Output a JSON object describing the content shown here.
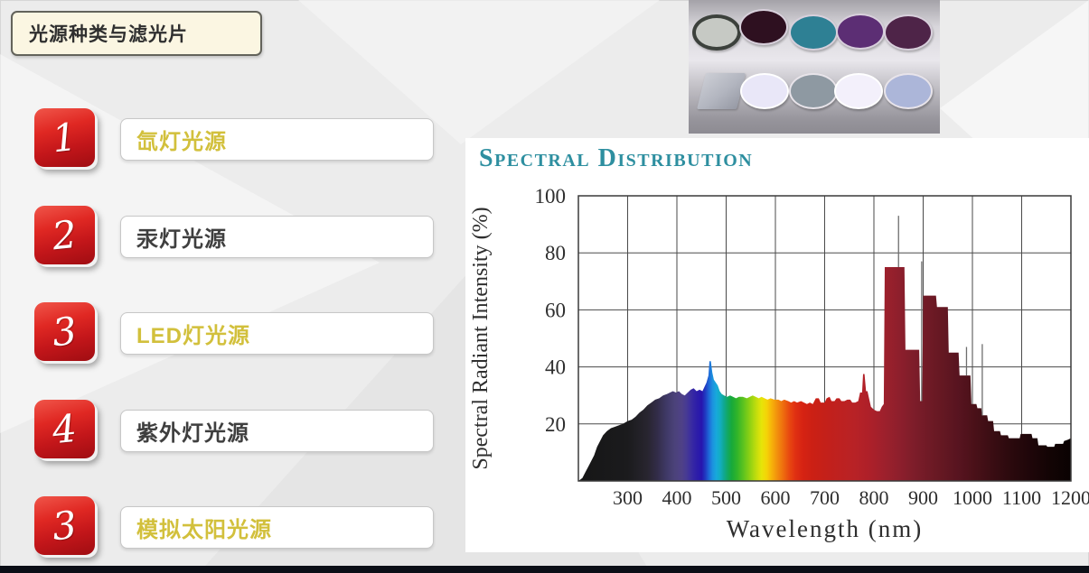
{
  "slide_title": {
    "text": "光源种类与滤光片"
  },
  "light_source_list": {
    "items": [
      {
        "number": "1",
        "label": "氙灯光源",
        "label_style": "gold"
      },
      {
        "number": "2",
        "label": "汞灯光源",
        "label_style": "dark"
      },
      {
        "number": "3",
        "label": "LED灯光源",
        "label_style": "gold"
      },
      {
        "number": "4",
        "label": "紫外灯光源",
        "label_style": "dark"
      },
      {
        "number": "3",
        "label": "模拟太阳光源",
        "label_style": "gold"
      }
    ]
  },
  "colors": {
    "badge_red_top": "#f0564a",
    "badge_red_bottom": "#9f0d12",
    "gold_text": "#d2c03c",
    "dark_text": "#3f3f3f",
    "chart_title_teal": "#2e8fa0",
    "title_box_bg": "#fbf6e2",
    "title_box_border": "#63635b",
    "footer_bar": "#0b0e16"
  },
  "filters_photo": {
    "top_row": [
      {
        "name": "gray-ringed-filter",
        "fill": "#c6c9c4",
        "ring": "#3c413c"
      },
      {
        "name": "dark-maroon-filter",
        "fill": "#2e1020",
        "ring": "#d8d0dc"
      },
      {
        "name": "teal-filter",
        "fill": "#2e8094",
        "ring": "#d8d0dc"
      },
      {
        "name": "purple-filter",
        "fill": "#5c2e74",
        "ring": "#d8d0dc"
      },
      {
        "name": "plum-filter",
        "fill": "#4e2448",
        "ring": "#d8d0dc"
      }
    ],
    "bottom_row": [
      {
        "name": "square-gray-filter",
        "fill": "#b9bcc4",
        "ring": ""
      },
      {
        "name": "pale-lavender-filter",
        "fill": "#e9e7f8",
        "ring": "#ffffff"
      },
      {
        "name": "gray-filter",
        "fill": "#8e99a2",
        "ring": "#e8e4ea"
      },
      {
        "name": "white-filter",
        "fill": "#f3f0fb",
        "ring": "#ffffff"
      },
      {
        "name": "periwinkle-filter",
        "fill": "#acb6d9",
        "ring": "#e8e4ea"
      }
    ]
  },
  "chart_data": {
    "type": "area",
    "title": "Spectral Distribution",
    "xlabel": "Wavelength (nm)",
    "ylabel": "Spectral Radiant Intensity (%)",
    "xlim": [
      200,
      1200
    ],
    "ylim": [
      0,
      100
    ],
    "x_ticks": [
      300,
      400,
      500,
      600,
      700,
      800,
      900,
      1000,
      1100,
      1200
    ],
    "y_ticks": [
      20,
      40,
      60,
      80,
      100
    ],
    "grid": true,
    "legend": false,
    "series": [
      [
        200,
        0
      ],
      [
        208,
        1
      ],
      [
        214,
        3
      ],
      [
        220,
        5
      ],
      [
        226,
        7
      ],
      [
        232,
        9
      ],
      [
        238,
        12
      ],
      [
        244,
        14
      ],
      [
        250,
        16
      ],
      [
        258,
        17.5
      ],
      [
        266,
        18.5
      ],
      [
        274,
        19
      ],
      [
        282,
        19.5
      ],
      [
        290,
        20
      ],
      [
        300,
        21
      ],
      [
        308,
        21.5
      ],
      [
        316,
        22.5
      ],
      [
        324,
        24
      ],
      [
        332,
        25
      ],
      [
        340,
        26.5
      ],
      [
        348,
        27.5
      ],
      [
        356,
        28.5
      ],
      [
        364,
        29
      ],
      [
        372,
        30
      ],
      [
        380,
        30.5
      ],
      [
        386,
        31
      ],
      [
        392,
        31.5
      ],
      [
        398,
        31
      ],
      [
        404,
        31.5
      ],
      [
        410,
        30.5
      ],
      [
        416,
        30
      ],
      [
        422,
        31
      ],
      [
        428,
        32
      ],
      [
        434,
        32.5
      ],
      [
        440,
        31.5
      ],
      [
        446,
        32
      ],
      [
        452,
        31.5
      ],
      [
        456,
        33
      ],
      [
        460,
        34.5
      ],
      [
        464,
        37
      ],
      [
        466,
        42
      ],
      [
        469,
        42
      ],
      [
        472,
        38
      ],
      [
        475,
        35.5
      ],
      [
        479,
        34.5
      ],
      [
        483,
        33.5
      ],
      [
        487,
        31.5
      ],
      [
        491,
        30.5
      ],
      [
        496,
        30
      ],
      [
        502,
        29.5
      ],
      [
        508,
        30
      ],
      [
        514,
        29.5
      ],
      [
        520,
        29
      ],
      [
        526,
        29.5
      ],
      [
        534,
        29.5
      ],
      [
        542,
        29
      ],
      [
        548,
        29.5
      ],
      [
        554,
        30
      ],
      [
        560,
        29.5
      ],
      [
        566,
        29
      ],
      [
        572,
        29.5
      ],
      [
        578,
        29
      ],
      [
        584,
        28.5
      ],
      [
        590,
        29
      ],
      [
        598,
        28.5
      ],
      [
        606,
        28.5
      ],
      [
        612,
        28
      ],
      [
        618,
        28.5
      ],
      [
        626,
        28
      ],
      [
        632,
        27.5
      ],
      [
        638,
        28
      ],
      [
        644,
        27.5
      ],
      [
        652,
        28
      ],
      [
        658,
        27.5
      ],
      [
        664,
        27
      ],
      [
        670,
        27.5
      ],
      [
        676,
        27
      ],
      [
        682,
        29
      ],
      [
        688,
        29
      ],
      [
        692,
        27.5
      ],
      [
        700,
        27.5
      ],
      [
        704,
        29
      ],
      [
        710,
        29.5
      ],
      [
        714,
        28
      ],
      [
        720,
        28
      ],
      [
        724,
        29
      ],
      [
        730,
        29
      ],
      [
        734,
        28
      ],
      [
        740,
        28
      ],
      [
        746,
        28.5
      ],
      [
        752,
        28.5
      ],
      [
        756,
        27.5
      ],
      [
        762,
        27.5
      ],
      [
        768,
        28
      ],
      [
        772,
        31
      ],
      [
        776,
        31
      ],
      [
        778,
        37.5
      ],
      [
        781,
        37.5
      ],
      [
        784,
        31.5
      ],
      [
        787,
        31.5
      ],
      [
        790,
        29
      ],
      [
        794,
        26
      ],
      [
        800,
        25
      ],
      [
        806,
        24.5
      ],
      [
        812,
        24.5
      ],
      [
        816,
        26
      ],
      [
        820,
        27
      ],
      [
        822,
        75
      ],
      [
        862,
        75
      ],
      [
        864,
        46
      ],
      [
        892,
        46
      ],
      [
        894,
        28
      ],
      [
        898,
        28
      ],
      [
        900,
        65
      ],
      [
        926,
        65
      ],
      [
        928,
        61
      ],
      [
        950,
        61
      ],
      [
        952,
        45
      ],
      [
        972,
        45
      ],
      [
        974,
        37
      ],
      [
        996,
        37
      ],
      [
        998,
        27
      ],
      [
        1008,
        27
      ],
      [
        1010,
        25.5
      ],
      [
        1018,
        25.5
      ],
      [
        1020,
        23
      ],
      [
        1030,
        23
      ],
      [
        1032,
        21
      ],
      [
        1042,
        21
      ],
      [
        1044,
        17.5
      ],
      [
        1056,
        17.5
      ],
      [
        1058,
        16
      ],
      [
        1072,
        16
      ],
      [
        1074,
        15
      ],
      [
        1096,
        15
      ],
      [
        1098,
        16.5
      ],
      [
        1120,
        16.5
      ],
      [
        1122,
        15
      ],
      [
        1132,
        15
      ],
      [
        1134,
        12.5
      ],
      [
        1150,
        12.5
      ],
      [
        1152,
        12
      ],
      [
        1166,
        12
      ],
      [
        1168,
        13
      ],
      [
        1184,
        13
      ],
      [
        1186,
        14
      ],
      [
        1194,
        14.5
      ],
      [
        1200,
        15
      ]
    ],
    "spike_lines": [
      {
        "x": 850,
        "from": 75,
        "to": 93
      },
      {
        "x": 897,
        "from": 28,
        "to": 77
      },
      {
        "x": 988,
        "from": 37,
        "to": 47
      },
      {
        "x": 1020,
        "from": 23,
        "to": 48
      }
    ],
    "wavelength_colors": [
      [
        200,
        "#161616"
      ],
      [
        300,
        "#1b1b1d"
      ],
      [
        340,
        "#28252f"
      ],
      [
        360,
        "#322c48"
      ],
      [
        380,
        "#403a68"
      ],
      [
        395,
        "#4b4279"
      ],
      [
        410,
        "#4f4187"
      ],
      [
        420,
        "#463a94"
      ],
      [
        430,
        "#392aa2"
      ],
      [
        440,
        "#2d1ea8"
      ],
      [
        450,
        "#2715ae"
      ],
      [
        458,
        "#203cc2"
      ],
      [
        465,
        "#1e68d8"
      ],
      [
        472,
        "#1c90de"
      ],
      [
        480,
        "#17a9dc"
      ],
      [
        488,
        "#13aec0"
      ],
      [
        495,
        "#10a895"
      ],
      [
        503,
        "#12a863"
      ],
      [
        511,
        "#17a93a"
      ],
      [
        522,
        "#30b42a"
      ],
      [
        536,
        "#60c41e"
      ],
      [
        550,
        "#96d312"
      ],
      [
        562,
        "#c5de0d"
      ],
      [
        572,
        "#e7e409"
      ],
      [
        582,
        "#f4d407"
      ],
      [
        592,
        "#f6b30a"
      ],
      [
        603,
        "#f2920d"
      ],
      [
        616,
        "#ee6c0e"
      ],
      [
        628,
        "#e84910"
      ],
      [
        640,
        "#e03112"
      ],
      [
        655,
        "#d62313"
      ],
      [
        675,
        "#cc2014"
      ],
      [
        700,
        "#c42019"
      ],
      [
        730,
        "#be2120"
      ],
      [
        760,
        "#b82226"
      ],
      [
        790,
        "#ae2029"
      ],
      [
        820,
        "#9e202c"
      ],
      [
        850,
        "#8e1f2c"
      ],
      [
        880,
        "#7e1d2a"
      ],
      [
        910,
        "#701a26"
      ],
      [
        940,
        "#641822"
      ],
      [
        970,
        "#581420"
      ],
      [
        1000,
        "#4c1119"
      ],
      [
        1040,
        "#3a0d13"
      ],
      [
        1080,
        "#2a090d"
      ],
      [
        1120,
        "#1e0609"
      ],
      [
        1160,
        "#120404"
      ],
      [
        1200,
        "#0a0202"
      ]
    ]
  }
}
